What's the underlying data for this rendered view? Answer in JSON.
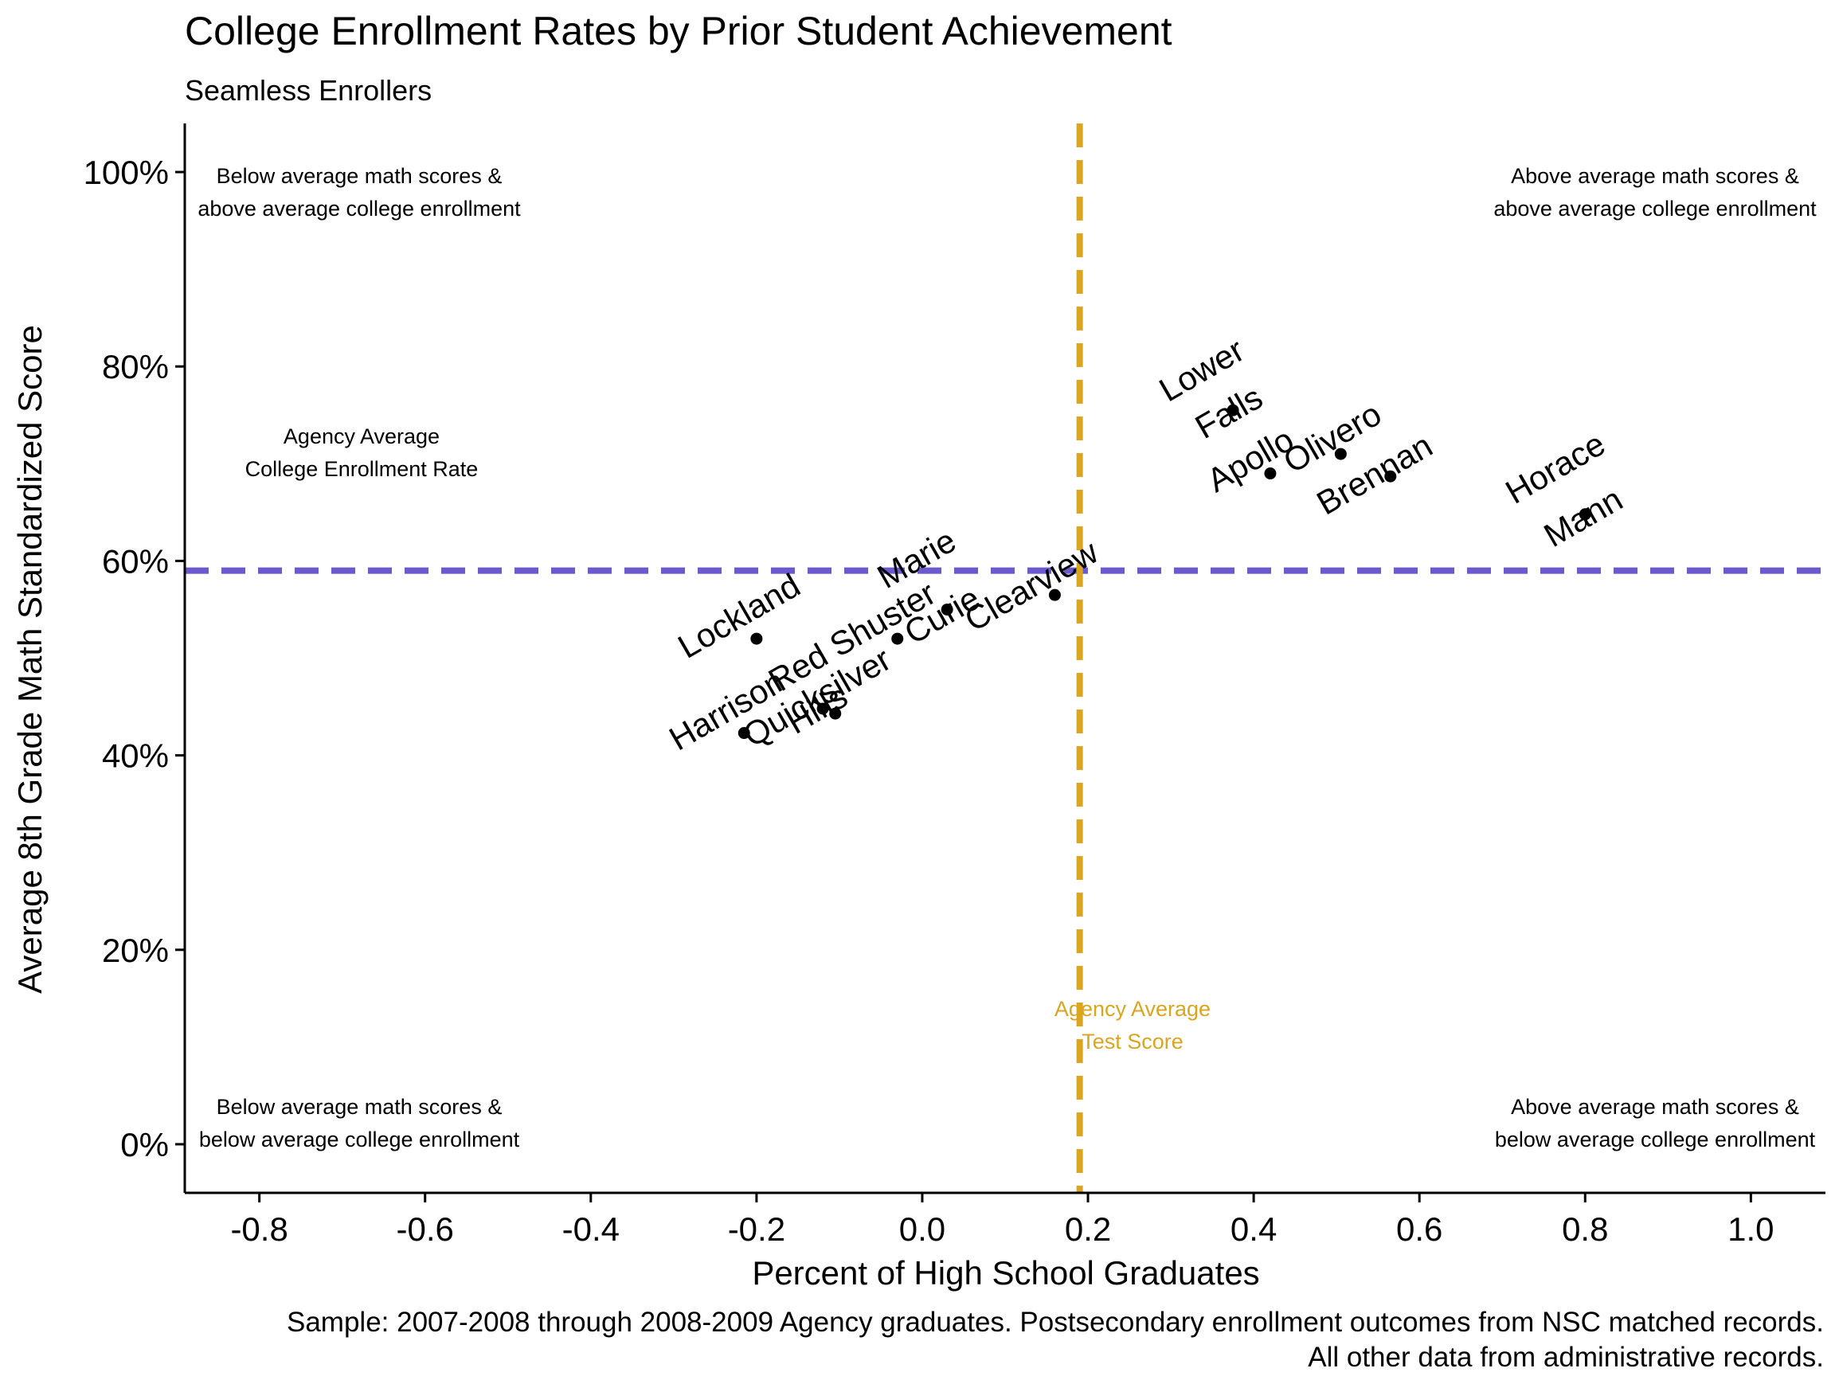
{
  "chart_data": {
    "type": "scatter",
    "title": "College Enrollment Rates by Prior Student Achievement",
    "subtitle": "Seamless Enrollers",
    "xlabel": "Percent of High School Graduates",
    "ylabel": "Average 8th Grade Math Standardized Score",
    "caption_lines": [
      "Sample: 2007-2008 through 2008-2009 Agency graduates. Postsecondary enrollment outcomes from NSC matched records.",
      "All other data from administrative records."
    ],
    "xlim": [
      -0.89,
      1.09
    ],
    "ylim": [
      -0.05,
      1.05
    ],
    "x_ticks": [
      -0.8,
      -0.6,
      -0.4,
      -0.2,
      0.0,
      0.2,
      0.4,
      0.6,
      0.8,
      1.0
    ],
    "x_tick_labels": [
      "-0.8",
      "-0.6",
      "-0.4",
      "-0.2",
      "0.0",
      "0.2",
      "0.4",
      "0.6",
      "0.8",
      "1.0"
    ],
    "y_ticks": [
      0,
      0.2,
      0.4,
      0.6,
      0.8,
      1.0
    ],
    "y_tick_labels": [
      "0%",
      "20%",
      "40%",
      "60%",
      "80%",
      "100%"
    ],
    "grid": false,
    "reference_lines": {
      "horizontal": {
        "y": 0.59,
        "color": "#6A5ACD",
        "style": "dashed"
      },
      "vertical": {
        "x": 0.19,
        "color": "#DAA520",
        "style": "dashed"
      }
    },
    "points": [
      {
        "name": "Lower Falls",
        "label_lines": [
          "Lower",
          "Falls"
        ],
        "x": 0.375,
        "y": 0.755
      },
      {
        "name": "Apollo",
        "label_lines": [
          "Apollo"
        ],
        "x": 0.42,
        "y": 0.69
      },
      {
        "name": "Olivero",
        "label_lines": [
          "Olivero"
        ],
        "x": 0.505,
        "y": 0.71
      },
      {
        "name": "Brennan",
        "label_lines": [
          "Brennan"
        ],
        "x": 0.565,
        "y": 0.687
      },
      {
        "name": "Horace Mann",
        "label_lines": [
          "Horace",
          "Mann"
        ],
        "x": 0.8,
        "y": 0.648
      },
      {
        "name": "Clearview",
        "label_lines": [
          "Clearview"
        ],
        "x": 0.16,
        "y": 0.565
      },
      {
        "name": "Marie Curie",
        "label_lines": [
          "Marie",
          "Curie"
        ],
        "x": 0.03,
        "y": 0.55
      },
      {
        "name": "Red Shuster",
        "label_lines": [
          "Red Shuster"
        ],
        "x": -0.03,
        "y": 0.52
      },
      {
        "name": "Lockland",
        "label_lines": [
          "Lockland"
        ],
        "x": -0.2,
        "y": 0.52
      },
      {
        "name": "Quicksilver Hills",
        "label_lines": [
          "Quicksilver",
          "Hills"
        ],
        "x": -0.12,
        "y": 0.448
      },
      {
        "name": "Hills",
        "label_lines": [],
        "x": -0.105,
        "y": 0.443
      },
      {
        "name": "Harrison",
        "label_lines": [
          "Harrison"
        ],
        "x": -0.215,
        "y": 0.423
      }
    ],
    "annotations": {
      "top_left": [
        "Below average math scores &",
        "above average college enrollment"
      ],
      "top_right": [
        "Above average math scores &",
        "above average college enrollment"
      ],
      "bottom_left": [
        "Below average math scores &",
        "below average college enrollment"
      ],
      "bottom_right": [
        "Above average math scores &",
        "below average college enrollment"
      ],
      "agency_enrollment": [
        "Agency Average",
        "College Enrollment Rate"
      ],
      "agency_test": [
        "Agency Average",
        "Test Score"
      ]
    },
    "colors": {
      "points": "#000000",
      "horizontal_line": "#6A5ACD",
      "vertical_line": "#DAA520",
      "agency_test_text": "#DAA520"
    }
  }
}
